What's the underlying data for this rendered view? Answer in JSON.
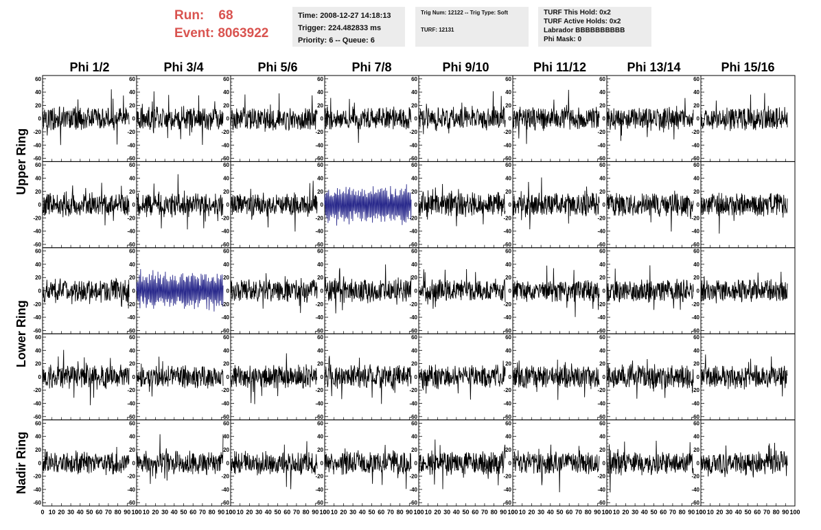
{
  "header": {
    "run_label": "Run:",
    "run_value": "68",
    "event_label": "Event:",
    "event_value": "8063922",
    "info_box_1": [
      "Time: 2008-12-27 14:18:13",
      "Trigger: 224.482833 ms",
      "Priority: 6 -- Queue: 6"
    ],
    "info_box_2": [
      "Trig Num: 12122 -- Trig Type: Soft",
      "TURF: 12131"
    ],
    "info_box_3": [
      "TURF This Hold: 0x2",
      "TURF Active Holds: 0x2",
      "Labrador BBBBBBBBBB",
      "Phi Mask: 0"
    ]
  },
  "chart_data": {
    "type": "line",
    "columns": [
      "Phi 1/2",
      "Phi 3/4",
      "Phi 5/6",
      "Phi 7/8",
      "Phi 9/10",
      "Phi 11/12",
      "Phi 13/14",
      "Phi 15/16"
    ],
    "row_labels": [
      {
        "text": "Upper Ring",
        "rows": [
          0,
          1
        ]
      },
      {
        "text": "Lower Ring",
        "rows": [
          2,
          3
        ]
      },
      {
        "text": "Nadir Ring",
        "rows": [
          4,
          4
        ]
      }
    ],
    "rows": 5,
    "xlim": [
      0,
      100
    ],
    "ylim": [
      -65,
      65
    ],
    "y_ticks": [
      -60,
      -40,
      -20,
      0,
      20,
      40,
      60
    ],
    "x_tick_labels": [
      "0",
      "10",
      "20",
      "30",
      "40",
      "50",
      "60",
      "70",
      "80",
      "90",
      "100"
    ],
    "samples_per_trace": 260,
    "trace_amplitude_typical": 15,
    "trace_peak_range": [
      -55,
      50
    ],
    "colors": {
      "normal": "#000000",
      "triggered": "#2a2a8c",
      "header_red": "#d9534f",
      "box_bg": "#ececec"
    },
    "highlighted_panels": [
      {
        "row": 1,
        "col": 3
      },
      {
        "row": 2,
        "col": 1
      }
    ]
  }
}
